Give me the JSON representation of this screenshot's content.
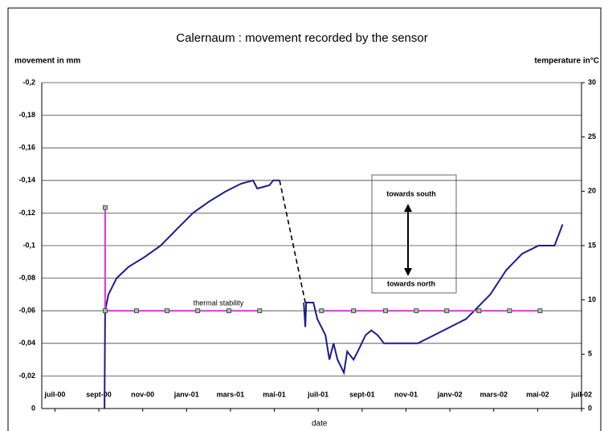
{
  "chart_data": {
    "type": "line",
    "title": "Calernaum : movement recorded by the sensor",
    "y_label": "movement in mm",
    "y2_label": "temperature in°C",
    "x_label": "date",
    "xlim": [
      -0.6,
      24
    ],
    "xticks": [
      {
        "value": 0,
        "label": "juil-00"
      },
      {
        "value": 2,
        "label": "sept-00"
      },
      {
        "value": 4,
        "label": "nov-00"
      },
      {
        "value": 6,
        "label": "janv-01"
      },
      {
        "value": 8,
        "label": "mars-01"
      },
      {
        "value": 10,
        "label": "mai-01"
      },
      {
        "value": 12,
        "label": "juil-01"
      },
      {
        "value": 14,
        "label": "sept-01"
      },
      {
        "value": 16,
        "label": "nov-01"
      },
      {
        "value": 18,
        "label": "janv-02"
      },
      {
        "value": 20,
        "label": "mars-02"
      },
      {
        "value": 22,
        "label": "mai-02"
      },
      {
        "value": 24,
        "label": "juil-02"
      }
    ],
    "ylim": [
      0,
      -0.2
    ],
    "yticks": [
      0,
      {
        "value": -0.02,
        "label": "-0,02"
      },
      {
        "value": -0.04,
        "label": "-0,04"
      },
      {
        "value": -0.06,
        "label": "-0,06"
      },
      {
        "value": -0.08,
        "label": "-0,08"
      },
      {
        "value": -0.1,
        "label": "-0,1"
      },
      {
        "value": -0.12,
        "label": "-0,12"
      },
      {
        "value": -0.14,
        "label": "-0,14"
      },
      {
        "value": -0.16,
        "label": "-0,16"
      },
      {
        "value": -0.18,
        "label": "-0,18"
      },
      {
        "value": -0.2,
        "label": "-0,2"
      }
    ],
    "y2lim": [
      0,
      30
    ],
    "y2ticks": [
      0,
      5,
      10,
      15,
      20,
      25,
      30
    ],
    "grid": true,
    "series": [
      {
        "color": "#1c1c8a",
        "x": [
          2.26,
          2.29,
          2.44,
          2.81,
          3.36,
          4.09,
          4.82,
          5.55,
          6.29,
          7.02,
          7.75,
          8.48,
          9.03,
          9.22,
          9.77,
          9.95,
          10.24,
          null,
          11.34,
          11.41,
          11.45,
          11.78,
          11.96,
          12.33,
          12.51,
          12.7,
          12.88,
          13.17,
          13.32,
          13.61,
          13.8,
          14.16,
          14.42,
          14.71,
          15.0,
          15.81,
          16.54,
          17.28,
          18.01,
          18.74,
          19.11,
          19.84,
          20.57,
          21.3,
          22.04,
          22.77,
          23.14
        ],
        "values": [
          0,
          -0.06,
          -0.07,
          -0.08,
          -0.087,
          -0.093,
          -0.1,
          -0.11,
          -0.12,
          -0.127,
          -0.133,
          -0.138,
          -0.14,
          -0.135,
          -0.137,
          -0.14,
          -0.14,
          null,
          -0.065,
          -0.05,
          -0.065,
          -0.065,
          -0.055,
          -0.045,
          -0.03,
          -0.04,
          -0.03,
          -0.022,
          -0.035,
          -0.03,
          -0.035,
          -0.045,
          -0.048,
          -0.045,
          -0.04,
          -0.04,
          -0.04,
          -0.045,
          -0.05,
          -0.055,
          -0.06,
          -0.07,
          -0.085,
          -0.095,
          -0.1,
          -0.1,
          -0.113
        ]
      },
      {
        "color": "#000000",
        "dashed": true,
        "x": [
          10.24,
          11.41
        ],
        "values": [
          -0.14,
          -0.065
        ]
      },
      {
        "color": "#e030e0",
        "axis": "y2",
        "markers": true,
        "x": [
          2.29,
          2.29,
          3.72,
          5.11,
          6.51,
          7.93,
          9.33,
          null,
          12.15,
          13.61,
          15.07,
          16.47,
          17.86,
          19.33,
          20.72,
          22.11
        ],
        "values": [
          18.5,
          9,
          9,
          9,
          9,
          9,
          9,
          null,
          9,
          9,
          9,
          9,
          9,
          9,
          9,
          9
        ]
      }
    ],
    "annotations": [
      "thermal stability",
      "towards south",
      "towards north"
    ]
  }
}
